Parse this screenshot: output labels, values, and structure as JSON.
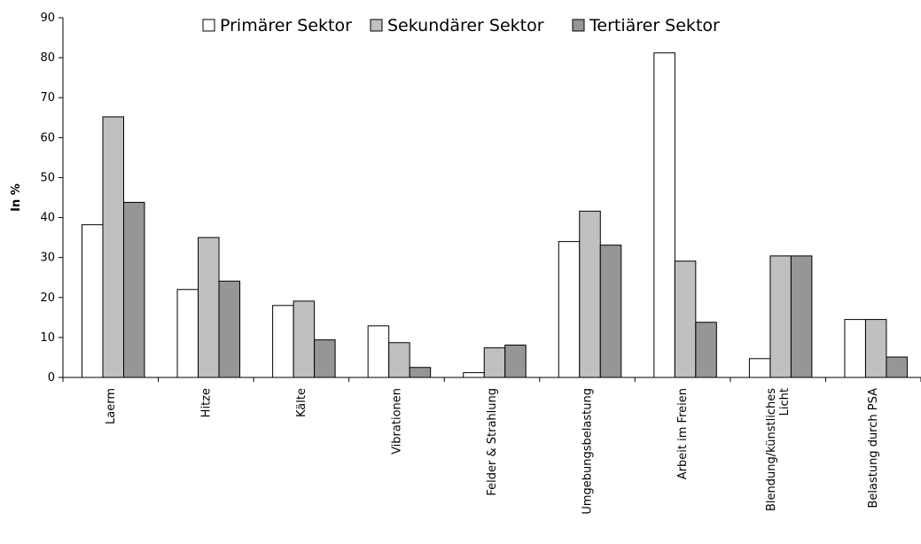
{
  "chart_data": {
    "type": "bar",
    "title": "",
    "xlabel": "",
    "ylabel": "In %",
    "ylim": [
      0,
      90
    ],
    "yticks": [
      0,
      10,
      20,
      30,
      40,
      50,
      60,
      70,
      80,
      90
    ],
    "grid": false,
    "legend_position": "top",
    "categories": [
      "Laerm",
      "Hitze",
      "Kälte",
      "Vibrationen",
      "Felder & Strahlung",
      "Umgebungsbelastung",
      "Arbeit im Freien",
      "Blendung/künstliches|Licht",
      "Belastung durch PSA"
    ],
    "series": [
      {
        "name": "Primärer Sektor",
        "color": "#ffffff",
        "values": [
          38.2,
          22.0,
          18.0,
          12.9,
          1.2,
          34.0,
          81.2,
          4.7,
          14.5
        ]
      },
      {
        "name": "Sekundärer Sektor",
        "color": "#c0c0c0",
        "values": [
          65.2,
          35.0,
          19.1,
          8.7,
          7.4,
          41.6,
          29.1,
          30.4,
          14.5
        ]
      },
      {
        "name": "Tertiärer Sektor",
        "color": "#969696",
        "values": [
          43.8,
          24.1,
          9.4,
          2.5,
          8.1,
          33.1,
          13.8,
          30.4,
          5.1
        ]
      }
    ]
  }
}
